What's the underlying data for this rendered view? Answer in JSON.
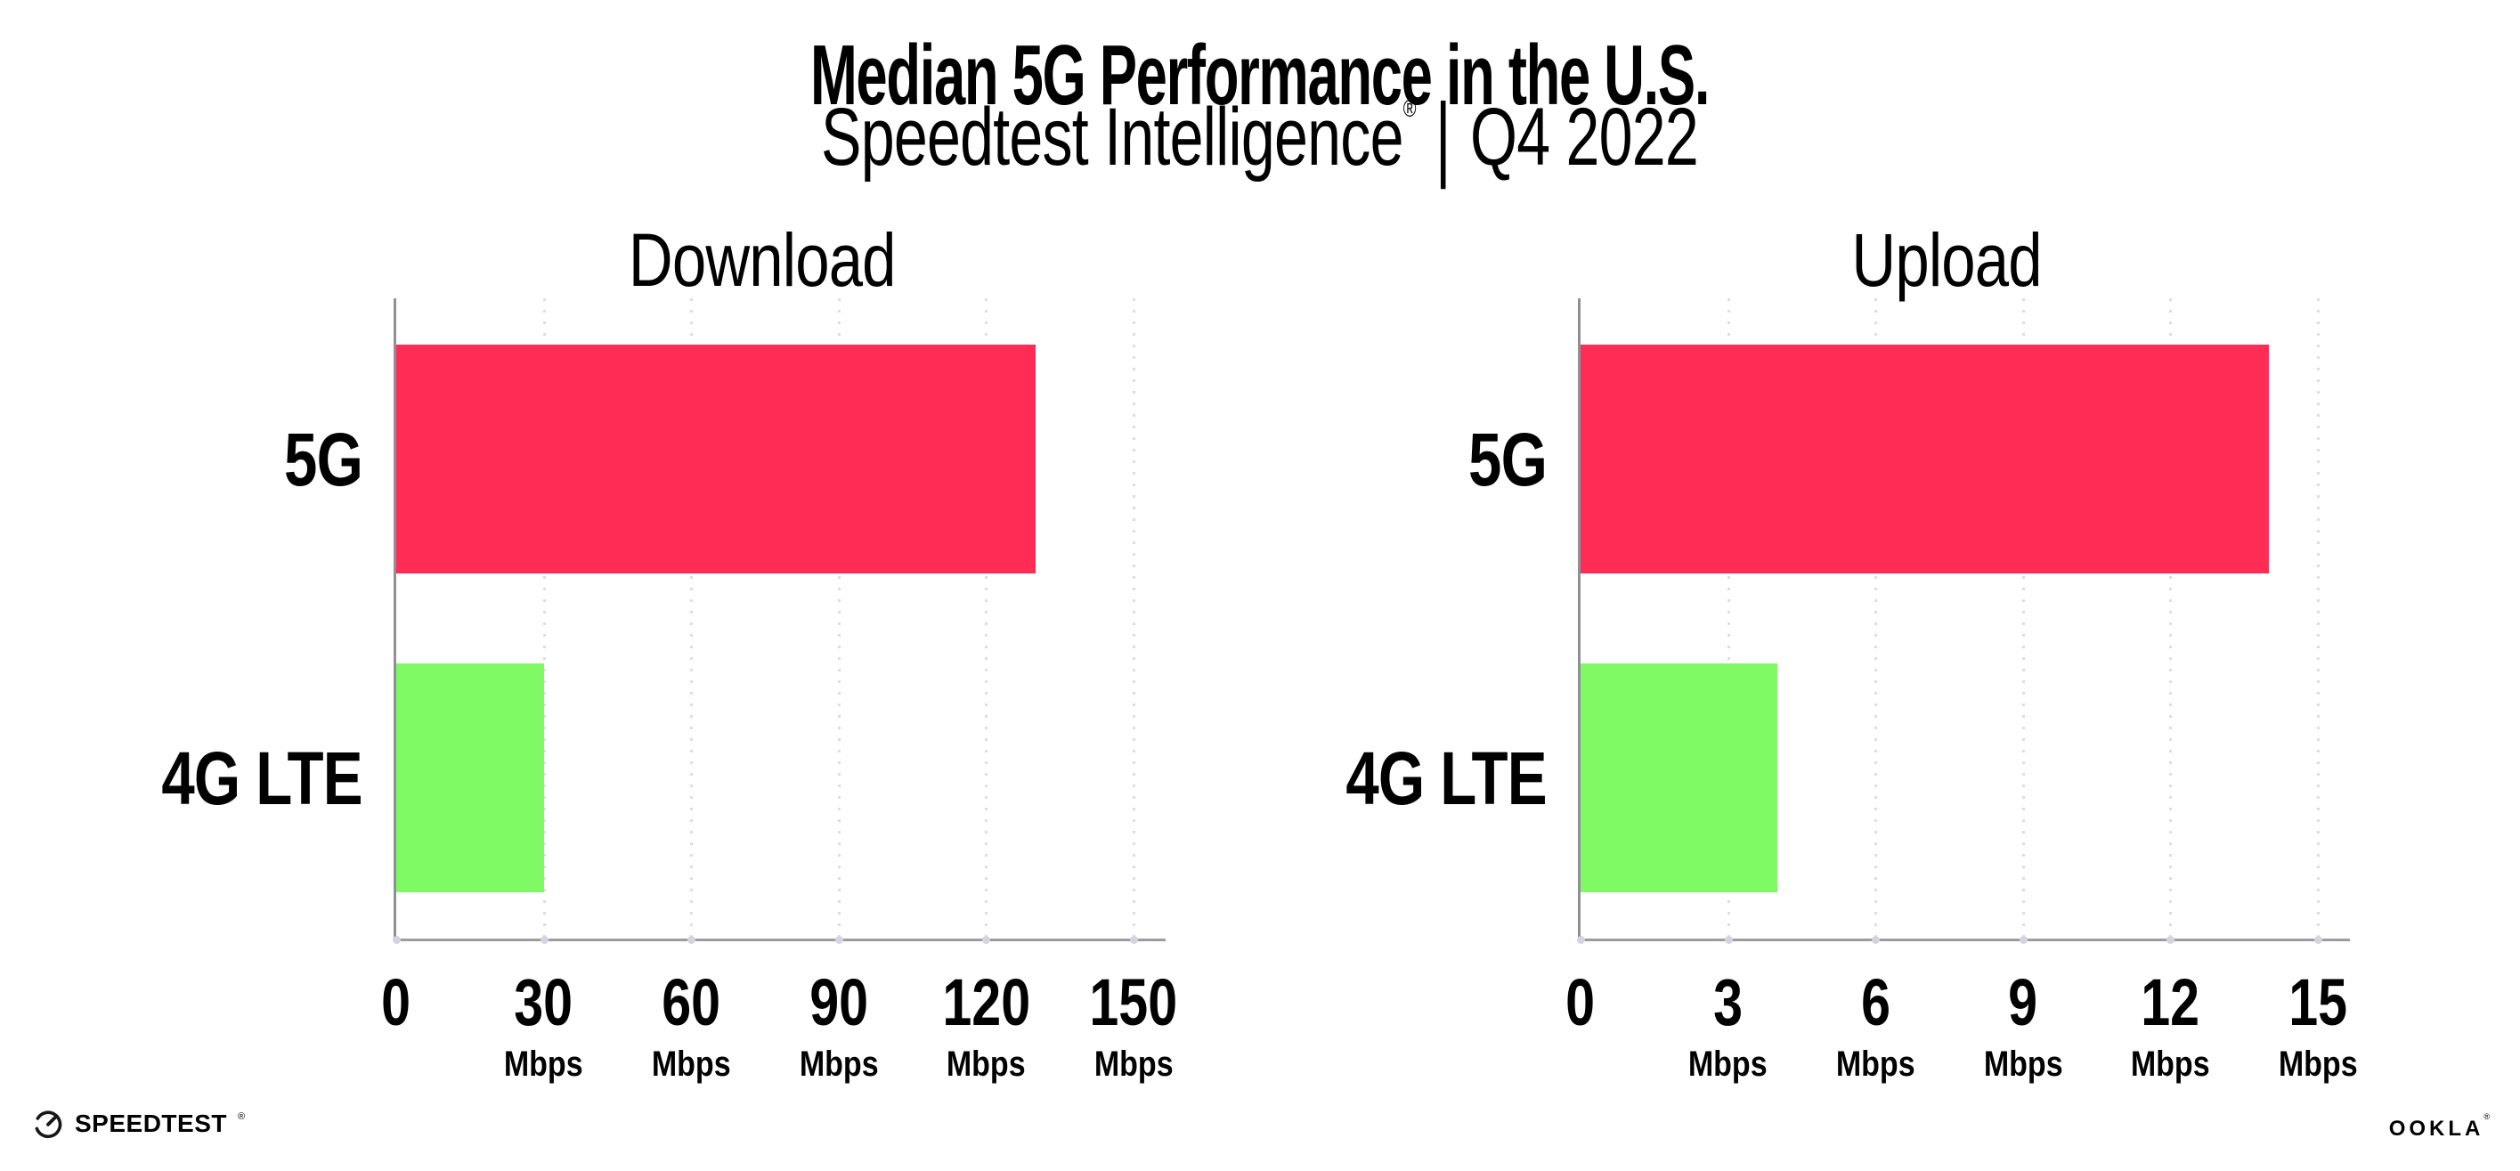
{
  "header": {
    "title": "Median 5G Performance in the U.S.",
    "subtitle_brand": "Speedtest Intelligence",
    "subtitle_reg": "®",
    "subtitle_separator": "|",
    "subtitle_period": "Q4 2022"
  },
  "chart_data": [
    {
      "type": "bar",
      "orientation": "horizontal",
      "title": "Download",
      "categories": [
        "5G",
        "4G LTE"
      ],
      "values": [
        130,
        30
      ],
      "unit": "Mbps",
      "xlim": [
        0,
        150
      ],
      "xticks": [
        0,
        30,
        60,
        90,
        120,
        150
      ],
      "bar_colors": [
        "#ff2d55",
        "#80fa64"
      ],
      "grid": "dotted-vertical",
      "legend": "none"
    },
    {
      "type": "bar",
      "orientation": "horizontal",
      "title": "Upload",
      "categories": [
        "5G",
        "4G LTE"
      ],
      "values": [
        14,
        4
      ],
      "unit": "Mbps",
      "xlim": [
        0,
        15
      ],
      "xticks": [
        0,
        3,
        6,
        9,
        12,
        15
      ],
      "bar_colors": [
        "#ff2d55",
        "#80fa64"
      ],
      "grid": "dotted-vertical",
      "legend": "none"
    }
  ],
  "footer": {
    "speedtest_label": "SPEEDTEST",
    "speedtest_mark": "®",
    "ookla_label": "OOKLA",
    "ookla_mark": "®"
  },
  "colors": {
    "bar_5g": "#ff2d55",
    "bar_4g_lte": "#80fa64",
    "axis_line": "#9b9ba4",
    "grid_dot": "#dcdce8",
    "text": "#000000",
    "background": "#ffffff"
  }
}
